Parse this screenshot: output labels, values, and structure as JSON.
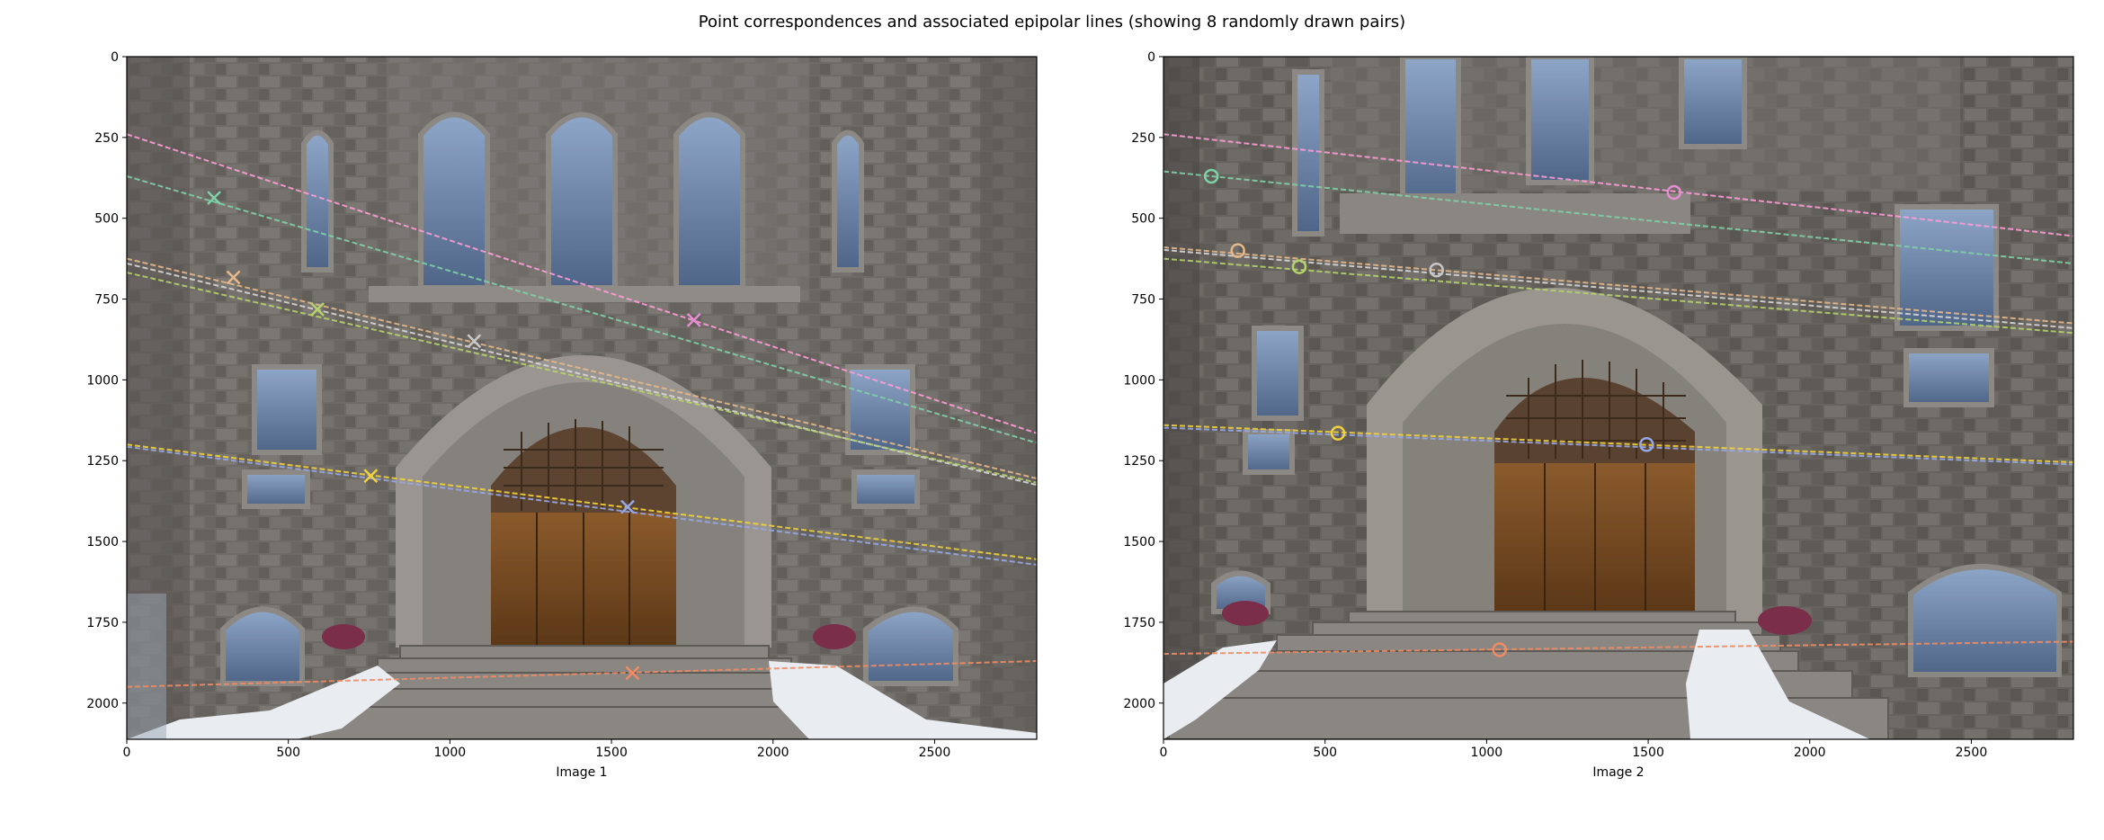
{
  "figure": {
    "title": "Point correspondences and associated epipolar lines (showing 8 randomly drawn pairs)"
  },
  "chart_data": [
    {
      "type": "scatter",
      "panel": "left",
      "marker": "x",
      "xlabel": "Image 1",
      "ylabel": "",
      "xlim": [
        0,
        2816
      ],
      "ylim": [
        2112,
        0
      ],
      "x_ticks": [
        0,
        500,
        1000,
        1500,
        2000,
        2500
      ],
      "y_ticks": [
        0,
        250,
        500,
        750,
        1000,
        1250,
        1500,
        1750,
        2000
      ],
      "grid": false,
      "background": "photograph of a stone building entrance with arched windows, wooden doors and snowy steps",
      "points": [
        {
          "x": 270,
          "y": 437,
          "color": "#7fd1a8"
        },
        {
          "x": 330,
          "y": 683,
          "color": "#e6b98a"
        },
        {
          "x": 590,
          "y": 782,
          "color": "#b5d36b"
        },
        {
          "x": 1075,
          "y": 880,
          "color": "#c8c8c8"
        },
        {
          "x": 1755,
          "y": 815,
          "color": "#e68fd0"
        },
        {
          "x": 755,
          "y": 1297,
          "color": "#f0d23c"
        },
        {
          "x": 1550,
          "y": 1393,
          "color": "#96a8e6"
        },
        {
          "x": 1565,
          "y": 1907,
          "color": "#f08c64"
        }
      ],
      "epipolar_lines": [
        {
          "y_at_x0": 240,
          "y_at_xmax": 1165,
          "color": "#ff9cd8"
        },
        {
          "y_at_x0": 370,
          "y_at_xmax": 1195,
          "color": "#7fd1a8"
        },
        {
          "y_at_x0": 625,
          "y_at_xmax": 1305,
          "color": "#e6b98a"
        },
        {
          "y_at_x0": 640,
          "y_at_xmax": 1325,
          "color": "#d8d8d8"
        },
        {
          "y_at_x0": 668,
          "y_at_xmax": 1318,
          "color": "#b5d36b"
        },
        {
          "y_at_x0": 1200,
          "y_at_xmax": 1555,
          "color": "#f0d23c"
        },
        {
          "y_at_x0": 1207,
          "y_at_xmax": 1572,
          "color": "#96a8e6"
        },
        {
          "y_at_x0": 1950,
          "y_at_xmax": 1870,
          "color": "#f08c64"
        }
      ]
    },
    {
      "type": "scatter",
      "panel": "right",
      "marker": "o",
      "xlabel": "Image 2",
      "ylabel": "",
      "xlim": [
        0,
        2816
      ],
      "ylim": [
        2112,
        0
      ],
      "x_ticks": [
        0,
        500,
        1000,
        1500,
        2000,
        2500
      ],
      "y_ticks": [
        0,
        250,
        500,
        750,
        1000,
        1250,
        1500,
        1750,
        2000
      ],
      "grid": false,
      "background": "photograph of the same building facade viewed from an angle",
      "points": [
        {
          "x": 148,
          "y": 370,
          "color": "#7fd1a8"
        },
        {
          "x": 230,
          "y": 600,
          "color": "#e6b98a"
        },
        {
          "x": 420,
          "y": 650,
          "color": "#b5d36b"
        },
        {
          "x": 845,
          "y": 660,
          "color": "#c8c8c8"
        },
        {
          "x": 1580,
          "y": 420,
          "color": "#e68fd0"
        },
        {
          "x": 540,
          "y": 1165,
          "color": "#f0d23c"
        },
        {
          "x": 1495,
          "y": 1200,
          "color": "#96a8e6"
        },
        {
          "x": 1040,
          "y": 1835,
          "color": "#f08c64"
        }
      ],
      "epipolar_lines": [
        {
          "y_at_x0": 240,
          "y_at_xmax": 555,
          "color": "#ff9cd8"
        },
        {
          "y_at_x0": 355,
          "y_at_xmax": 640,
          "color": "#7fd1a8"
        },
        {
          "y_at_x0": 590,
          "y_at_xmax": 825,
          "color": "#e6b98a"
        },
        {
          "y_at_x0": 598,
          "y_at_xmax": 840,
          "color": "#d8d8d8"
        },
        {
          "y_at_x0": 625,
          "y_at_xmax": 855,
          "color": "#b5d36b"
        },
        {
          "y_at_x0": 1140,
          "y_at_xmax": 1255,
          "color": "#f0d23c"
        },
        {
          "y_at_x0": 1148,
          "y_at_xmax": 1262,
          "color": "#96a8e6"
        },
        {
          "y_at_x0": 1848,
          "y_at_xmax": 1810,
          "color": "#f08c64"
        }
      ]
    }
  ]
}
